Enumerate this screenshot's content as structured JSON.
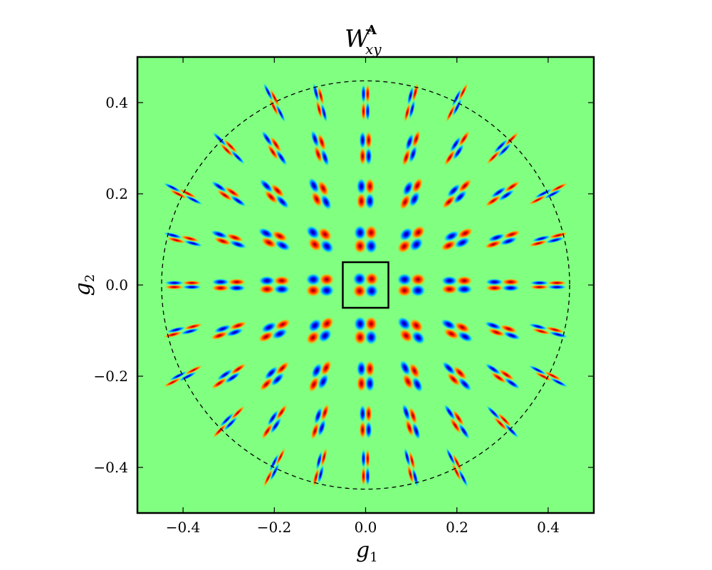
{
  "chart_data": {
    "type": "heatmap",
    "title": {
      "base": "W",
      "superscript": "A",
      "subscript": "xy"
    },
    "xlabel": {
      "base": "g",
      "subscript": "1"
    },
    "ylabel": {
      "base": "g",
      "subscript": "2"
    },
    "xlim": [
      -0.5,
      0.5
    ],
    "ylim": [
      -0.5,
      0.5
    ],
    "xticks": [
      -0.4,
      -0.2,
      0.0,
      0.2,
      0.4
    ],
    "yticks": [
      -0.4,
      -0.2,
      0.0,
      0.2,
      0.4
    ],
    "xtick_labels": [
      "−0.4",
      "−0.2",
      "0.0",
      "0.2",
      "0.4"
    ],
    "ytick_labels": [
      "−0.4",
      "−0.2",
      "0.0",
      "0.2",
      "0.4"
    ],
    "grid": false,
    "background_color": "#80ff80",
    "positive_color": "#d40000",
    "negative_color": "#0000cc",
    "colormap": "jet",
    "circle": {
      "center": [
        0.0,
        0.0
      ],
      "radius": 0.447,
      "style": "dashed"
    },
    "highlight_box": {
      "x": [
        -0.05,
        0.05
      ],
      "y": [
        -0.05,
        0.05
      ]
    },
    "grid_spacing": 0.1,
    "grid_range": [
      -0.4,
      0.4
    ],
    "pattern": "quadrupole (d_xy-like) lobes at each grid point inside the circle, sheared along the radial direction with distance from origin"
  }
}
